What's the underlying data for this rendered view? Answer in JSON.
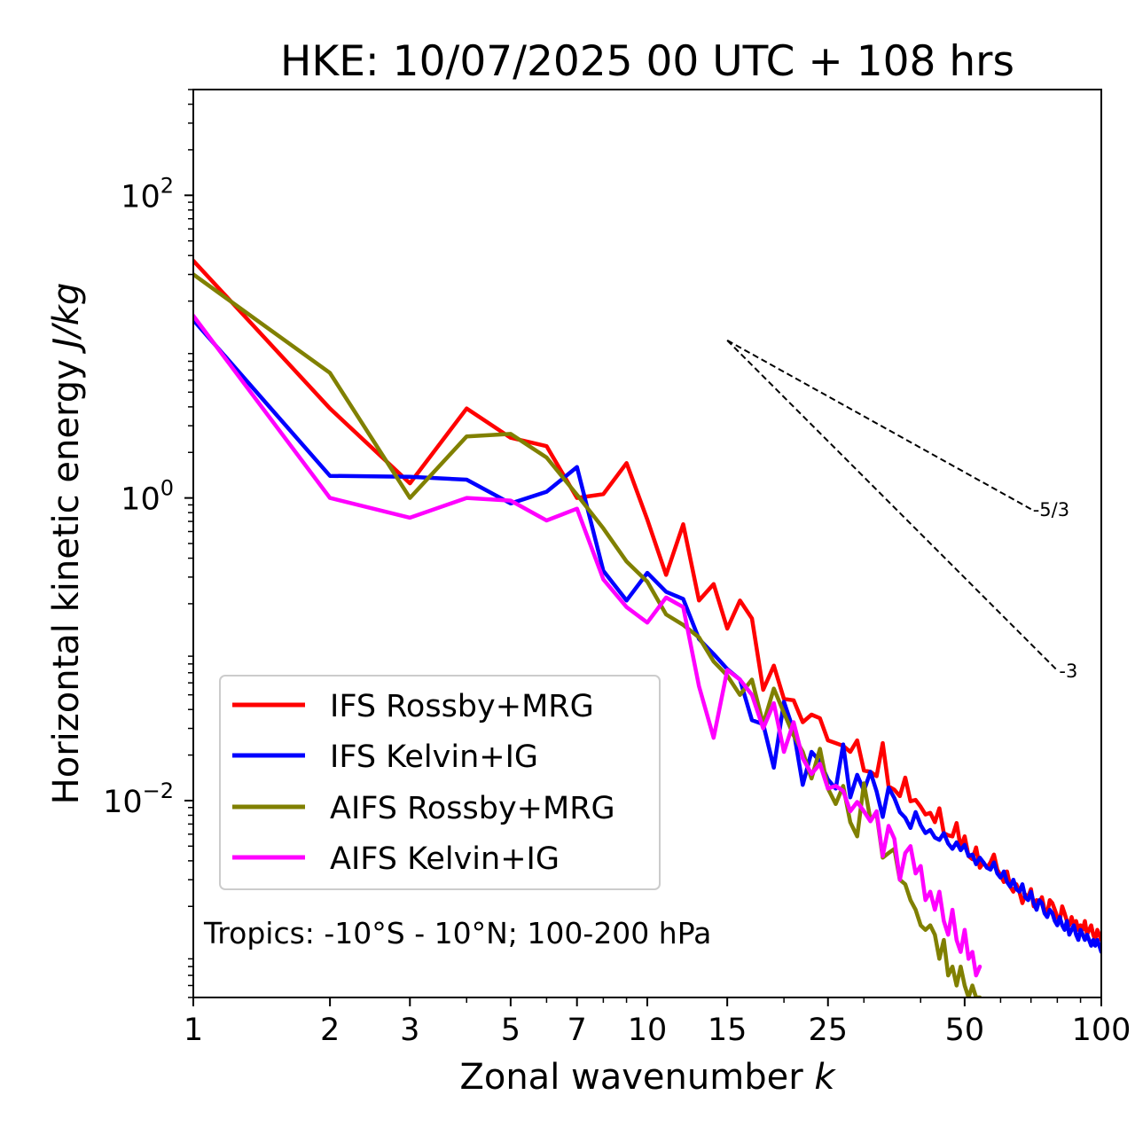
{
  "chart_data": {
    "type": "line",
    "title": "HKE: 10/07/2025 00 UTC + 108 hrs",
    "xlabel_main": "Zonal wavenumber",
    "xlabel_var": "k",
    "ylabel_main": "Horizontal kinetic energy",
    "ylabel_units": "J/kg",
    "xscale": "log",
    "yscale": "log",
    "xlim": [
      1,
      100
    ],
    "ylim": [
      0.0005,
      500
    ],
    "x_ticks": [
      {
        "value": 1,
        "label": "1"
      },
      {
        "value": 2,
        "label": "2"
      },
      {
        "value": 3,
        "label": "3"
      },
      {
        "value": 5,
        "label": "5"
      },
      {
        "value": 7,
        "label": "7"
      },
      {
        "value": 10,
        "label": "10"
      },
      {
        "value": 15,
        "label": "15"
      },
      {
        "value": 25,
        "label": "25"
      },
      {
        "value": 50,
        "label": "50"
      },
      {
        "value": 100,
        "label": "100"
      }
    ],
    "y_ticks": [
      {
        "value": 0.01,
        "base": "10",
        "exp": "−2"
      },
      {
        "value": 1,
        "base": "10",
        "exp": "0"
      },
      {
        "value": 100,
        "base": "10",
        "exp": "2"
      }
    ],
    "legend_position": "lower-left",
    "annotation": "Tropics: -10°S - 10°N; 100-200 hPa",
    "reference_slopes": [
      {
        "label": "-5/3",
        "slope": -1.6667,
        "x_start": 15,
        "x_end": 70,
        "y_start": 11
      },
      {
        "label": "-3",
        "slope": -3,
        "x_start": 15,
        "x_end": 80,
        "y_start": 11
      }
    ],
    "series": [
      {
        "name": "IFS Rossby+MRG",
        "color": "#ff0000",
        "x": [
          1,
          2,
          3,
          4,
          5,
          6,
          7,
          8,
          9,
          10,
          11,
          12,
          13,
          14,
          15,
          16,
          17,
          18,
          19,
          20,
          21,
          22,
          23,
          24,
          25,
          26,
          27,
          28,
          29,
          30,
          31,
          32,
          33,
          34,
          35,
          36,
          37,
          38,
          39,
          40,
          41,
          42,
          43,
          44,
          45,
          46,
          47,
          48,
          49,
          50,
          51,
          52,
          53,
          54,
          55,
          56,
          57,
          58,
          59,
          60,
          61,
          62,
          63,
          64,
          65,
          66,
          67,
          68,
          69,
          70,
          71,
          72,
          73,
          74,
          75,
          76,
          77,
          78,
          79,
          80,
          81,
          82,
          83,
          84,
          85,
          86,
          87,
          88,
          89,
          90,
          91,
          92,
          93,
          94,
          95,
          96,
          97,
          98,
          99,
          100
        ],
        "y": [
          37,
          3.9,
          1.25,
          3.9,
          2.5,
          2.2,
          1.0,
          1.06,
          1.7,
          0.72,
          0.31,
          0.67,
          0.21,
          0.27,
          0.137,
          0.21,
          0.16,
          0.054,
          0.078,
          0.047,
          0.046,
          0.033,
          0.037,
          0.035,
          0.025,
          0.024,
          0.023,
          0.021,
          0.025,
          0.0158,
          0.0155,
          0.0145,
          0.024,
          0.0124,
          0.0118,
          0.0107,
          0.0142,
          0.0099,
          0.0101,
          0.0091,
          0.0081,
          0.0083,
          0.0072,
          0.0089,
          0.0061,
          0.0059,
          0.0058,
          0.0071,
          0.0049,
          0.0058,
          0.0043,
          0.0041,
          0.0049,
          0.0036,
          0.0039,
          0.0036,
          0.0039,
          0.0044,
          0.0035,
          0.0032,
          0.0029,
          0.0034,
          0.0027,
          0.0025,
          0.0028,
          0.0025,
          0.0021,
          0.0024,
          0.0023,
          0.0026,
          0.002,
          0.0022,
          0.0021,
          0.0023,
          0.0019,
          0.0018,
          0.0022,
          0.0021,
          0.0019,
          0.0017,
          0.0016,
          0.002,
          0.0018,
          0.0016,
          0.0015,
          0.0017,
          0.0015,
          0.0016,
          0.0014,
          0.0015,
          0.0014,
          0.0016,
          0.0013,
          0.0014,
          0.0015,
          0.0013,
          0.0012,
          0.0014,
          0.0013,
          0.0012
        ]
      },
      {
        "name": "IFS Kelvin+IG",
        "color": "#0000ff",
        "x": [
          1,
          2,
          3,
          4,
          5,
          6,
          7,
          8,
          9,
          10,
          11,
          12,
          13,
          14,
          15,
          16,
          17,
          18,
          19,
          20,
          21,
          22,
          23,
          24,
          25,
          26,
          27,
          28,
          29,
          30,
          31,
          32,
          33,
          34,
          35,
          36,
          37,
          38,
          39,
          40,
          41,
          42,
          43,
          44,
          45,
          46,
          47,
          48,
          49,
          50,
          51,
          52,
          53,
          54,
          55,
          56,
          57,
          58,
          59,
          60,
          61,
          62,
          63,
          64,
          65,
          66,
          67,
          68,
          69,
          70,
          71,
          72,
          73,
          74,
          75,
          76,
          77,
          78,
          79,
          80,
          81,
          82,
          83,
          84,
          85,
          86,
          87,
          88,
          89,
          90,
          91,
          92,
          93,
          94,
          95,
          96,
          97,
          98,
          99,
          100
        ],
        "y": [
          15,
          1.4,
          1.38,
          1.32,
          0.92,
          1.1,
          1.6,
          0.33,
          0.21,
          0.32,
          0.24,
          0.215,
          0.117,
          0.093,
          0.074,
          0.063,
          0.034,
          0.032,
          0.0165,
          0.045,
          0.029,
          0.0127,
          0.021,
          0.0182,
          0.0138,
          0.012,
          0.0235,
          0.0105,
          0.0148,
          0.0116,
          0.0155,
          0.0115,
          0.0078,
          0.0122,
          0.0104,
          0.0084,
          0.0077,
          0.0066,
          0.0084,
          0.0069,
          0.0061,
          0.0064,
          0.0057,
          0.0055,
          0.0061,
          0.0052,
          0.0048,
          0.0053,
          0.0047,
          0.0051,
          0.0043,
          0.0044,
          0.0038,
          0.0042,
          0.0039,
          0.0036,
          0.0035,
          0.0039,
          0.0033,
          0.0031,
          0.0034,
          0.0029,
          0.0027,
          0.003,
          0.0026,
          0.0025,
          0.0028,
          0.0023,
          0.0022,
          0.0025,
          0.0021,
          0.0019,
          0.0022,
          0.0021,
          0.0018,
          0.0017,
          0.0019,
          0.0018,
          0.0016,
          0.0015,
          0.0017,
          0.0015,
          0.0014,
          0.0016,
          0.0013,
          0.0014,
          0.0015,
          0.0013,
          0.0012,
          0.0014,
          0.0013,
          0.0012,
          0.0013,
          0.0012,
          0.0011,
          0.0012,
          0.0011,
          0.0012,
          0.0011,
          0.001
        ]
      },
      {
        "name": "AIFS Rossby+MRG",
        "color": "#808000",
        "x": [
          1,
          2,
          3,
          4,
          5,
          6,
          7,
          8,
          9,
          10,
          11,
          12,
          13,
          14,
          15,
          16,
          17,
          18,
          19,
          20,
          21,
          22,
          23,
          24,
          25,
          26,
          27,
          28,
          29,
          30,
          31,
          32,
          33,
          34,
          35,
          36,
          37,
          38,
          39,
          40,
          41,
          42,
          43,
          44,
          45,
          46,
          47,
          48,
          49,
          50,
          51,
          52,
          53,
          54
        ],
        "y": [
          30,
          6.7,
          1.0,
          2.55,
          2.65,
          1.85,
          1.05,
          0.63,
          0.38,
          0.28,
          0.17,
          0.145,
          0.12,
          0.083,
          0.067,
          0.05,
          0.063,
          0.032,
          0.055,
          0.038,
          0.027,
          0.021,
          0.014,
          0.022,
          0.012,
          0.0095,
          0.0125,
          0.0072,
          0.0058,
          0.013,
          0.0075,
          0.0082,
          0.0042,
          0.0045,
          0.0048,
          0.003,
          0.0028,
          0.0022,
          0.0019,
          0.0015,
          0.0014,
          0.0015,
          0.0013,
          0.0009,
          0.0012,
          0.0007,
          0.0008,
          0.0006,
          0.0008,
          0.0006,
          0.0005,
          0.0006,
          0.0005,
          0.0005
        ]
      },
      {
        "name": "AIFS Kelvin+IG",
        "color": "#ff00ff",
        "x": [
          1,
          2,
          3,
          4,
          5,
          6,
          7,
          8,
          9,
          10,
          11,
          12,
          13,
          14,
          15,
          16,
          17,
          18,
          19,
          20,
          21,
          22,
          23,
          24,
          25,
          26,
          27,
          28,
          29,
          30,
          31,
          32,
          33,
          34,
          35,
          36,
          37,
          38,
          39,
          40,
          41,
          42,
          43,
          44,
          45,
          46,
          47,
          48,
          49,
          50,
          51,
          52,
          53,
          54
        ],
        "y": [
          16,
          1.0,
          0.74,
          1.0,
          0.96,
          0.71,
          0.85,
          0.29,
          0.19,
          0.15,
          0.22,
          0.19,
          0.057,
          0.026,
          0.073,
          0.063,
          0.05,
          0.03,
          0.044,
          0.021,
          0.033,
          0.019,
          0.015,
          0.0175,
          0.012,
          0.0125,
          0.0116,
          0.0085,
          0.0098,
          0.0085,
          0.0073,
          0.0085,
          0.0043,
          0.0068,
          0.0056,
          0.003,
          0.0045,
          0.005,
          0.0033,
          0.0037,
          0.0022,
          0.0025,
          0.0019,
          0.0025,
          0.0016,
          0.0013,
          0.0019,
          0.0012,
          0.001,
          0.0014,
          0.0009,
          0.001,
          0.0007,
          0.0008
        ]
      }
    ]
  }
}
